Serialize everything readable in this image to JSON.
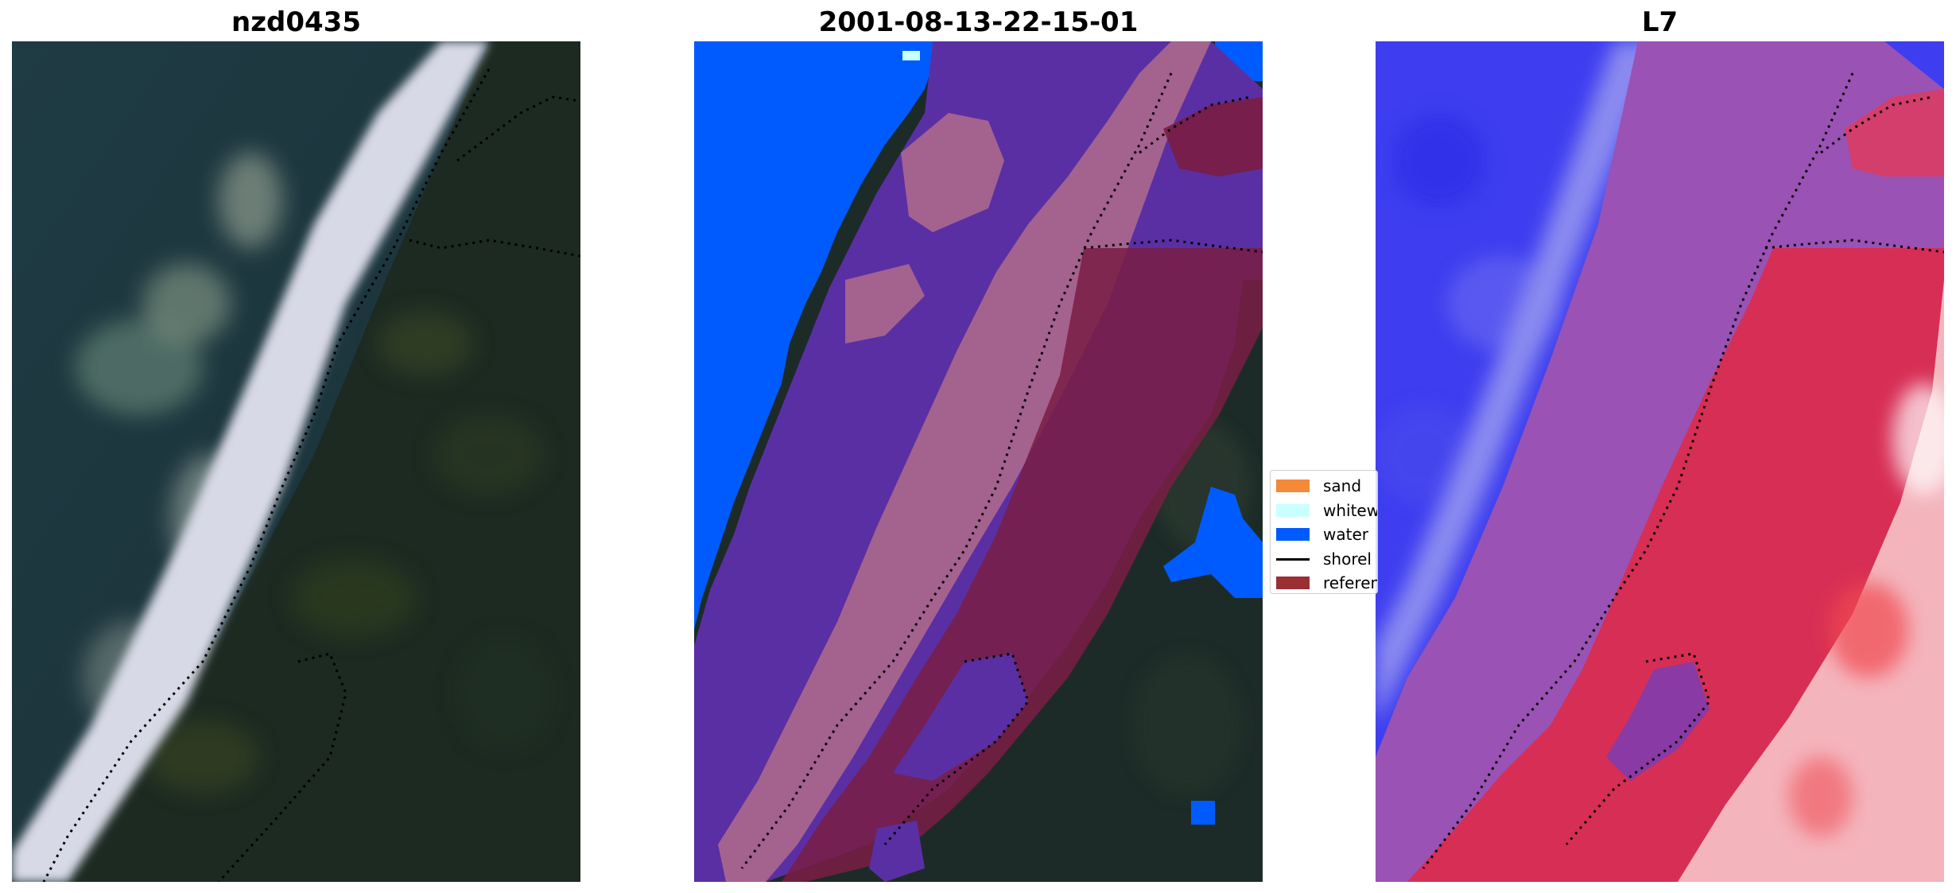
{
  "panels": [
    {
      "title": "nzd0435",
      "image": "true-colour satellite image of coastline with surf and vegetated land"
    },
    {
      "title": "2001-08-13-22-15-01",
      "image": "classified image: water, whitewater and shoreline zones over satellite image"
    },
    {
      "title": "L7",
      "image": "blue-to-red index map of the same coastline"
    }
  ],
  "legend": {
    "items": [
      {
        "label": "sand",
        "type": "patch",
        "color": "#f4893a"
      },
      {
        "label": "whitew",
        "type": "patch",
        "color": "#c9ffff"
      },
      {
        "label": "water",
        "type": "patch",
        "color": "#005bff"
      },
      {
        "label": "shorel",
        "type": "line",
        "color": "#000000"
      },
      {
        "label": "referen",
        "type": "patch",
        "color": "#9a2f33"
      }
    ]
  },
  "colors": {
    "deep_water": "#1c3a44",
    "land": "#1b2a23",
    "whitewater_rgb": "#dcdce6",
    "class_water": "#005bff",
    "class_purple": "#5a2fa4",
    "class_pink": "#a4628f",
    "class_reference": "#7a1d44",
    "index_blue": "#3e3ef0",
    "index_mid": "#9a52b4",
    "index_red": "#de2a4a",
    "index_light": "#f4b4bc"
  }
}
